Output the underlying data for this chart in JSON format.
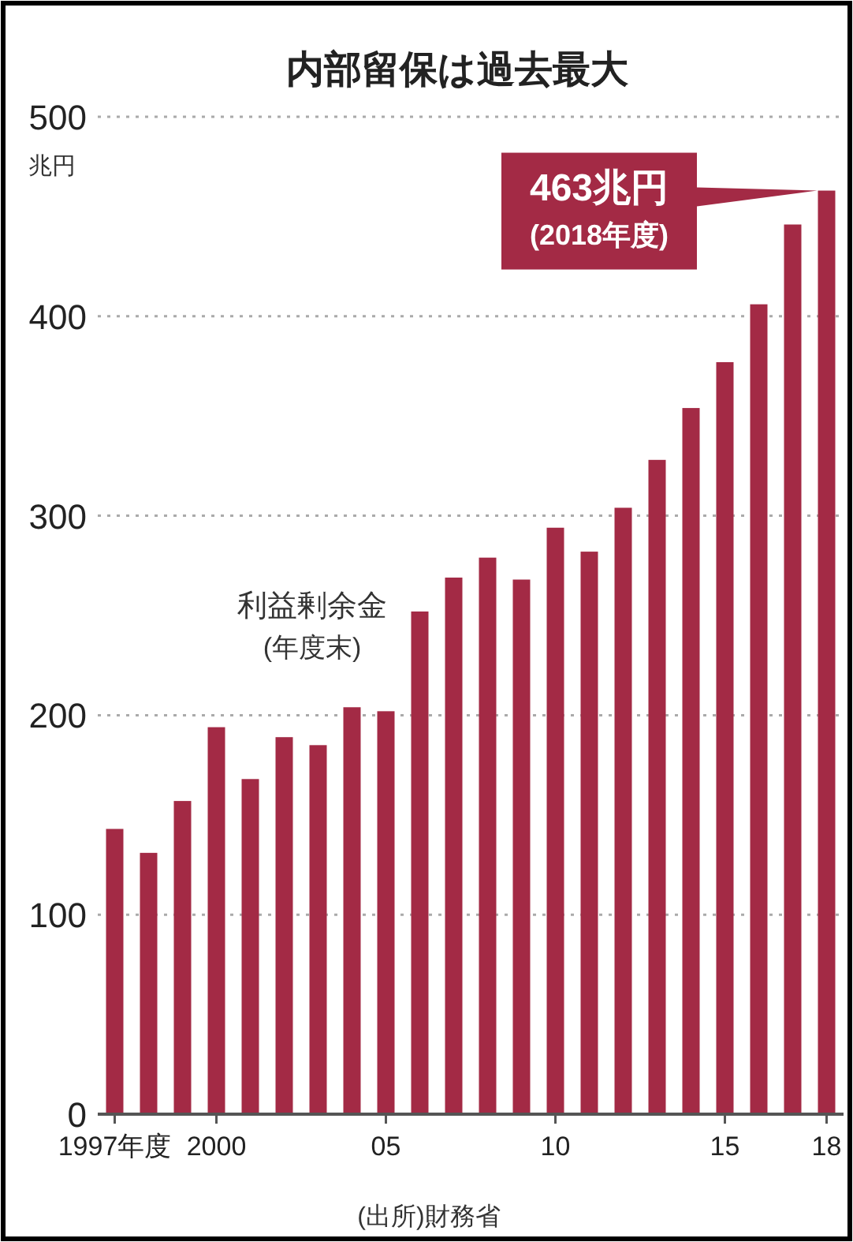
{
  "chart_data": {
    "type": "bar",
    "title": "内部留保は過去最大",
    "ylabel": "兆円",
    "categories": [
      "1997年度",
      null,
      null,
      "2000",
      null,
      null,
      null,
      null,
      "05",
      null,
      null,
      null,
      null,
      "10",
      null,
      null,
      null,
      null,
      "15",
      null,
      null,
      "18"
    ],
    "series": [
      {
        "name": "利益剰余金\n(年度末)",
        "color": "#a32a45",
        "values": [
          143,
          131,
          157,
          194,
          168,
          189,
          185,
          204,
          202,
          252,
          269,
          279,
          268,
          294,
          282,
          304,
          328,
          354,
          377,
          406,
          446,
          463
        ]
      }
    ],
    "ylim": [
      0,
      500
    ],
    "yticks": [
      0,
      100,
      200,
      300,
      400,
      500
    ],
    "grid": "y",
    "line_style": "dotted",
    "annotations": [
      {
        "text": "463兆円\n(2018年度)",
        "x": "18",
        "y": 463
      },
      "(出所)財務省"
    ]
  }
}
